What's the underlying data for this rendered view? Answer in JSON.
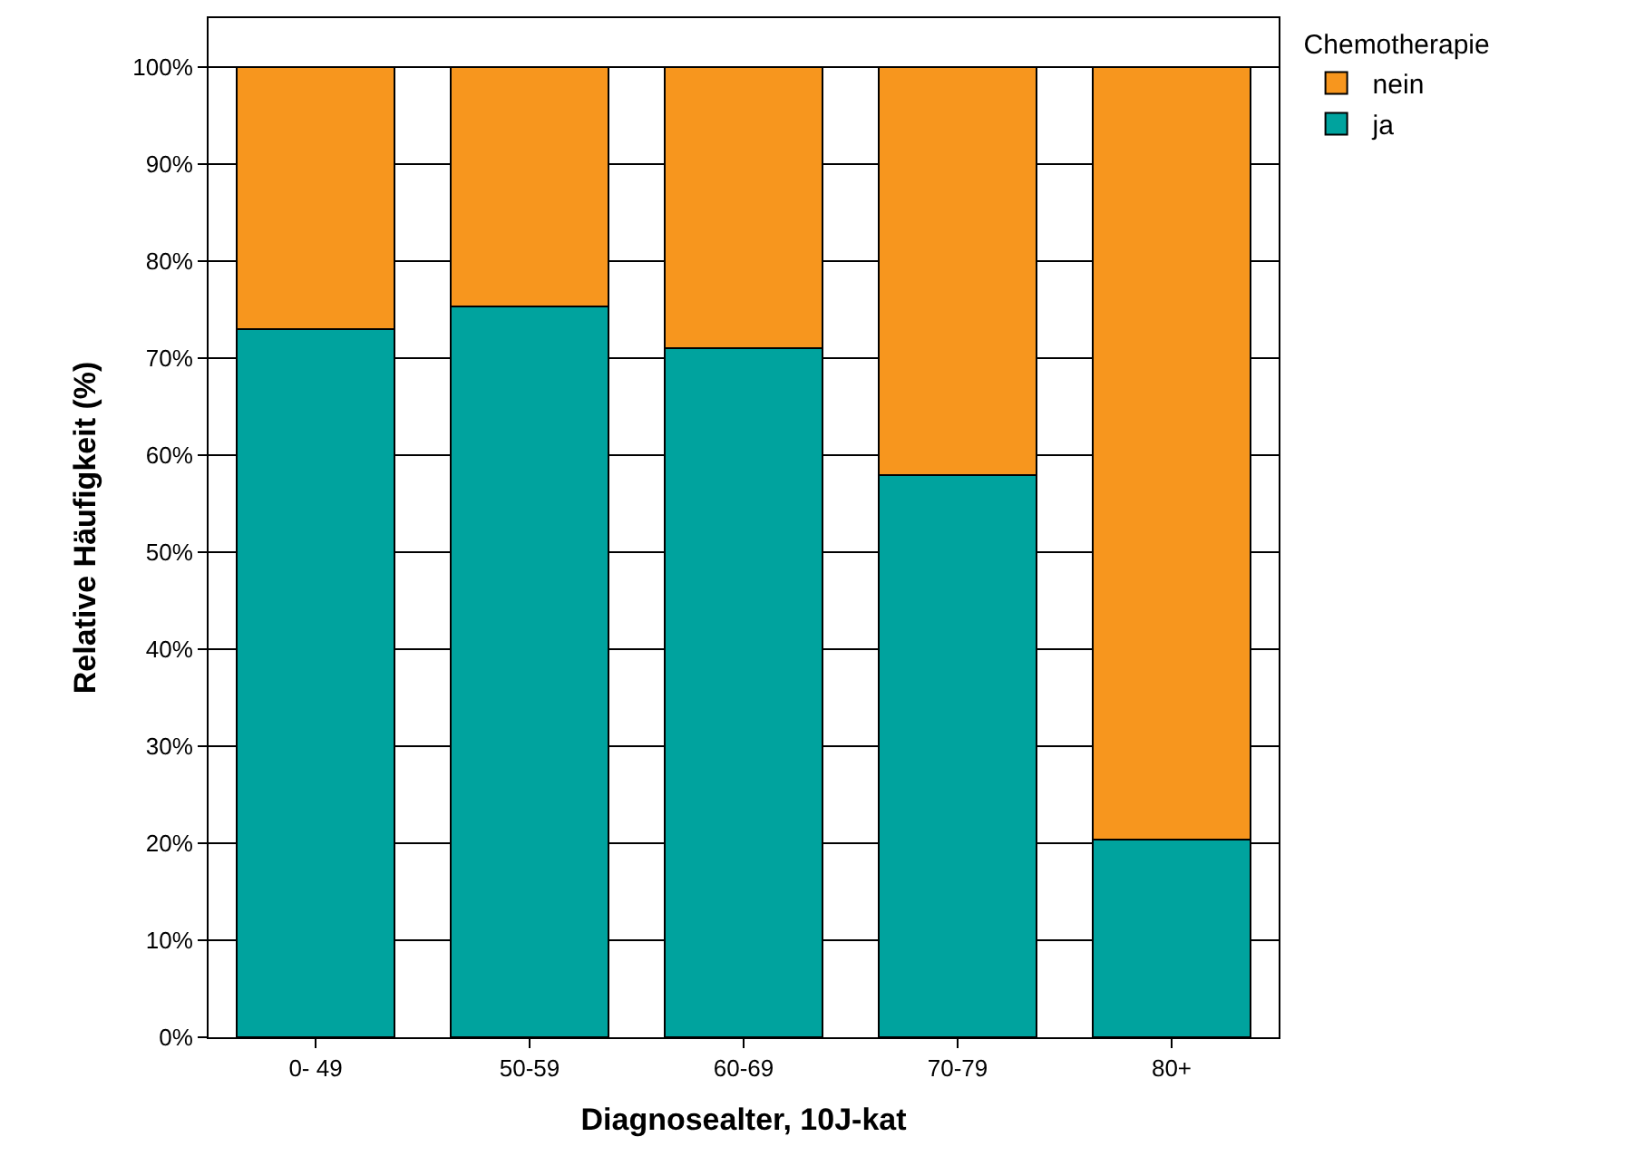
{
  "chart_data": {
    "type": "bar",
    "stacked": true,
    "xlabel": "Diagnosealter, 10J-kat",
    "ylabel": "Relative Häufigkeit (%)",
    "legend_title": "Chemotherapie",
    "categories": [
      "0- 49",
      "50-59",
      "60-69",
      "70-79",
      "80+"
    ],
    "series": [
      {
        "name": "ja",
        "color": "#00a39e",
        "values": [
          73.0,
          75.3,
          71.0,
          57.9,
          20.4
        ]
      },
      {
        "name": "nein",
        "color": "#f7961e",
        "values": [
          27.0,
          24.7,
          29.0,
          42.1,
          79.6
        ]
      }
    ],
    "ylim": [
      0,
      105
    ],
    "yticks": [
      {
        "value": 0,
        "label": "0%"
      },
      {
        "value": 10,
        "label": "10%"
      },
      {
        "value": 20,
        "label": "20%"
      },
      {
        "value": 30,
        "label": "30%"
      },
      {
        "value": 40,
        "label": "40%"
      },
      {
        "value": 50,
        "label": "50%"
      },
      {
        "value": 60,
        "label": "60%"
      },
      {
        "value": 70,
        "label": "70%"
      },
      {
        "value": 80,
        "label": "80%"
      },
      {
        "value": 90,
        "label": "90%"
      },
      {
        "value": 100,
        "label": "100%"
      }
    ],
    "grid": "y",
    "legend": "top right"
  }
}
